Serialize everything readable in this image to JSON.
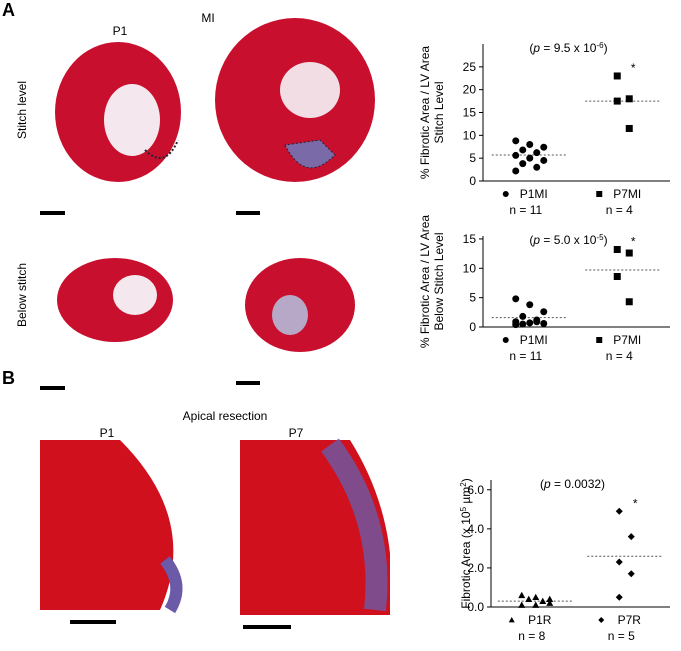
{
  "figure": {
    "panel_a": "A",
    "panel_b": "B",
    "p1_a": "P1",
    "mi": "MI",
    "p7_a": "P7",
    "stitch_level": "Stitch level",
    "below_stitch": "Below stitch",
    "apical_resection": "Apical resection",
    "p1_b": "P1",
    "p7_b": "P7"
  },
  "chart_data": [
    {
      "type": "scatter",
      "ylabel": [
        [
          {
            "text": "% Fibrotic Area / LV Area",
            "style": "normal"
          }
        ],
        [
          {
            "text": "Stitch Level",
            "style": "normal"
          }
        ]
      ],
      "annotation": [
        {
          "text": "(",
          "style": "normal"
        },
        {
          "text": "p",
          "style": "italic"
        },
        {
          "text": " = 9.5 x 10",
          "style": "normal"
        },
        {
          "text": "-6",
          "style": "sup"
        },
        {
          "text": ")",
          "style": "normal"
        }
      ],
      "star": "*",
      "categories": [
        "P1MI",
        "P7MI"
      ],
      "n_labels": [
        "n = 11",
        "n = 4"
      ],
      "series": [
        {
          "name": "P1MI",
          "marker": "circle",
          "color": "#000000",
          "values": [
            8.8,
            8.0,
            7.4,
            6.8,
            6.2,
            5.6,
            5.0,
            4.5,
            3.8,
            3.0,
            2.2
          ],
          "mean": 5.7
        },
        {
          "name": "P7MI",
          "marker": "square",
          "color": "#000000",
          "values": [
            23,
            18,
            17.5,
            11.5
          ],
          "mean": 17.5
        }
      ],
      "ylim": [
        0,
        30
      ],
      "yticks": [
        0,
        5,
        10,
        15,
        20,
        25
      ],
      "star_series": 1
    },
    {
      "type": "scatter",
      "ylabel": [
        [
          {
            "text": "% Fibrotic Area / LV Area",
            "style": "normal"
          }
        ],
        [
          {
            "text": "Below Stitch Level",
            "style": "normal"
          }
        ]
      ],
      "annotation": [
        {
          "text": "(",
          "style": "normal"
        },
        {
          "text": "p",
          "style": "italic"
        },
        {
          "text": " = 5.0 x 10",
          "style": "normal"
        },
        {
          "text": "-5",
          "style": "sup"
        },
        {
          "text": ")",
          "style": "normal"
        }
      ],
      "star": "*",
      "categories": [
        "P1MI",
        "P7MI"
      ],
      "n_labels": [
        "n = 11",
        "n = 4"
      ],
      "series": [
        {
          "name": "P1MI",
          "marker": "circle",
          "color": "#000000",
          "values": [
            4.8,
            3.8,
            2.6,
            1.8,
            1.2,
            0.9,
            0.7,
            0.6,
            0.5,
            0.9,
            0.4
          ],
          "mean": 1.6
        },
        {
          "name": "P7MI",
          "marker": "square",
          "color": "#000000",
          "values": [
            13.2,
            12.6,
            8.6,
            4.3
          ],
          "mean": 9.7
        }
      ],
      "ylim": [
        0,
        15.5
      ],
      "yticks": [
        0,
        5,
        10,
        15
      ],
      "star_series": 1
    },
    {
      "type": "scatter",
      "ylabel": [
        [
          {
            "text": "Fibrotic Area (x 10",
            "style": "normal"
          },
          {
            "text": "5",
            "style": "sup"
          },
          {
            "text": " µm",
            "style": "normal"
          },
          {
            "text": "2",
            "style": "sup"
          },
          {
            "text": ")",
            "style": "normal"
          }
        ]
      ],
      "annotation": [
        {
          "text": "(",
          "style": "normal"
        },
        {
          "text": "p",
          "style": "italic"
        },
        {
          "text": " = 0.0032)",
          "style": "normal"
        }
      ],
      "star": "*",
      "categories": [
        "P1R",
        "P7R"
      ],
      "n_labels": [
        "n = 8",
        "n = 5"
      ],
      "series": [
        {
          "name": "P1R",
          "marker": "triangle",
          "color": "#000000",
          "values": [
            0.6,
            0.5,
            0.4,
            0.4,
            0.3,
            0.1,
            0.1,
            0.2
          ],
          "mean": 0.3
        },
        {
          "name": "P7R",
          "marker": "diamond",
          "color": "#000000",
          "values": [
            4.9,
            3.6,
            2.3,
            1.7,
            0.5
          ],
          "mean": 2.6
        }
      ],
      "ylim": [
        0,
        6.5
      ],
      "yticks": [
        {
          "value": 0,
          "label": "0.0"
        },
        {
          "value": 2,
          "label": "2.0"
        },
        {
          "value": 4,
          "label": "4.0"
        },
        {
          "value": 6,
          "label": "6.0"
        }
      ],
      "star_series": 1
    }
  ]
}
